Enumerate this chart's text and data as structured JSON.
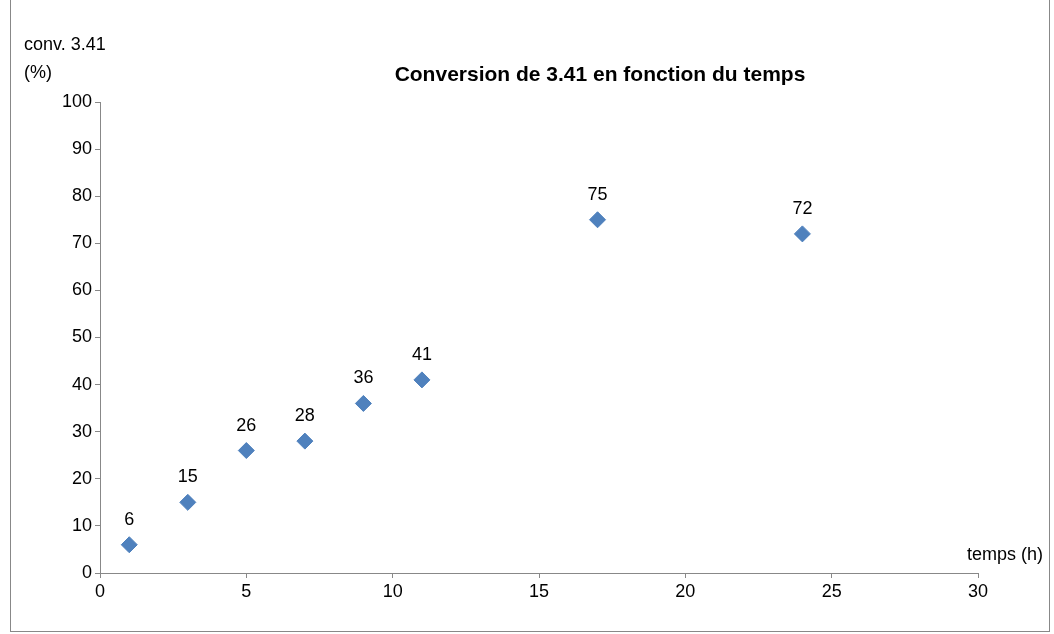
{
  "chart_data": {
    "type": "scatter",
    "title": "Conversion de 3.41 en fonction du temps",
    "xlabel": "temps (h)",
    "ylabel": "conv. 3.41 (%)",
    "x": [
      1,
      3,
      5,
      7,
      9,
      11,
      17,
      24
    ],
    "series": [
      {
        "color": "#4f81bd",
        "values": [
          6,
          15,
          26,
          28,
          36,
          41,
          75,
          72
        ]
      }
    ],
    "xlim": [
      0,
      30
    ],
    "xticks": [
      0,
      5,
      10,
      15,
      20,
      25,
      30
    ],
    "ylim": [
      0,
      100
    ],
    "yticks": [
      0,
      10,
      20,
      30,
      40,
      50,
      60,
      70,
      80,
      90,
      100
    ],
    "data_labels": true,
    "marker": "diamond",
    "grid": false,
    "legend": false
  }
}
